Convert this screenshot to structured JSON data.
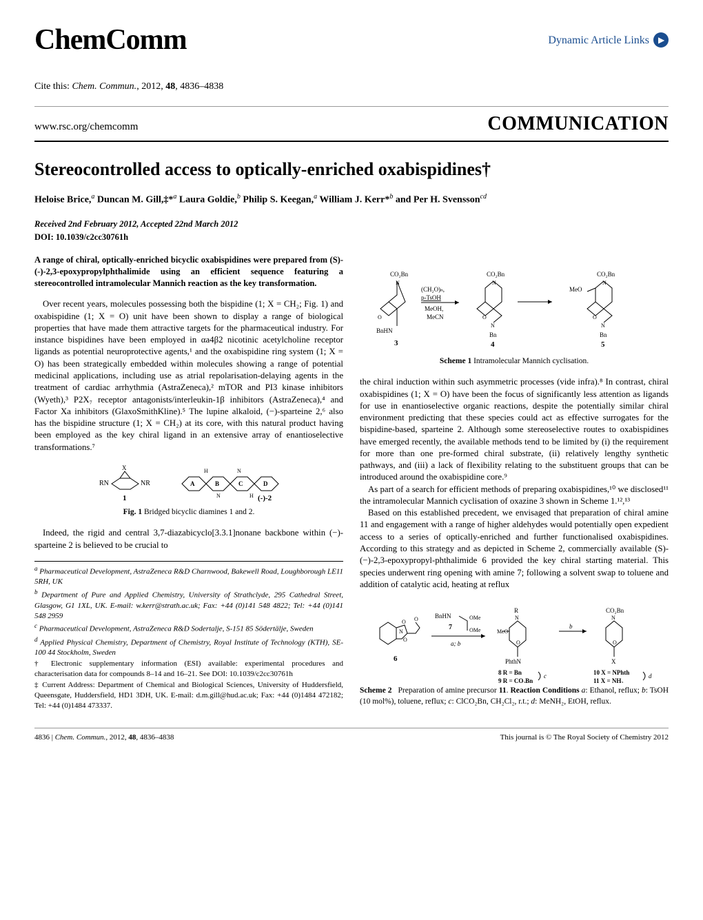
{
  "header": {
    "journal_name": "ChemComm",
    "article_links_text": "Dynamic Article Links"
  },
  "citation": {
    "prefix": "Cite this: ",
    "journal_italic": "Chem. Commun.",
    "year": ", 2012, ",
    "volume": "48",
    "pages": ", 4836–4838"
  },
  "url_row": {
    "journal_url": "www.rsc.org/chemcomm",
    "article_type": "COMMUNICATION"
  },
  "title": "Stereocontrolled access to optically-enriched oxabispidines†",
  "authors_html": "Heloise Brice,<span class='sup'>a</span> Duncan M. Gill,‡*<span class='sup'>a</span> Laura Goldie,<span class='sup'>b</span> Philip S. Keegan,<span class='sup'>a</span> William J. Kerr*<span class='sup'>b</span> and Per H. Svensson<span class='sup'>cd</span>",
  "dates": "Received 2nd February 2012, Accepted 22nd March 2012",
  "doi": "DOI: 10.1039/c2cc30761h",
  "abstract": "A range of chiral, optically-enriched bicyclic oxabispidines were prepared from (S)-(-)-2,3-epoxypropylphthalimide using an efficient sequence featuring a stereocontrolled intramolecular Mannich reaction as the key transformation.",
  "col1": {
    "p1": "Over recent years, molecules possessing both the bispidine (1; X = CH₂; Fig. 1) and oxabispidine (1; X = O) unit have been shown to display a range of biological properties that have made them attractive targets for the pharmaceutical industry. For instance bispidines have been employed in αa4β2 nicotinic acetylcholine receptor ligands as potential neuroprotective agents,¹ and the oxabispidine ring system (1; X = O) has been strategically embedded within molecules showing a range of potential medicinal applications, including use as atrial repolarisation-delaying agents in the treatment of cardiac arrhythmia (AstraZeneca),² mTOR and PI3 kinase inhibitors (Wyeth),³ P2X₇ receptor antagonists/interleukin-1β inhibitors (AstraZeneca),⁴ and Factor Xa inhibitors (GlaxoSmithKline).⁵ The lupine alkaloid, (−)-sparteine 2,⁶ also has the bispidine structure (1; X = CH₂) at its core, with this natural product having been employed as the key chiral ligand in an extensive array of enantioselective transformations.⁷",
    "fig1_caption_bold": "Fig. 1",
    "fig1_caption_rest": "   Bridged bicyclic diamines 1 and 2.",
    "p2": "Indeed, the rigid and central 3,7-diazabicyclo[3.3.1]nonane backbone within (−)-sparteine 2 is believed to be crucial to"
  },
  "affiliations": {
    "a": "Pharmaceutical Development, AstraZeneca R&D Charnwood, Bakewell Road, Loughborough LE11 5RH, UK",
    "b": "Department of Pure and Applied Chemistry, University of Strathclyde, 295 Cathedral Street, Glasgow, G1 1XL, UK. E-mail: w.kerr@strath.ac.uk; Fax: +44 (0)141 548 4822; Tel: +44 (0)141 548 2959",
    "c": "Pharmaceutical Development, AstraZeneca R&D Sodertalje, S-151 85 Södertälje, Sweden",
    "d": "Applied Physical Chemistry, Department of Chemistry, Royal Institute of Technology (KTH), SE-100 44 Stockholm, Sweden",
    "esi": "† Electronic supplementary information (ESI) available: experimental procedures and characterisation data for compounds 8–14 and 16–21. See DOI: 10.1039/c2cc30761h",
    "current": "‡ Current Address: Department of Chemical and Biological Sciences, University of Huddersfield, Queensgate, Huddersfield, HD1 3DH, UK. E-mail: d.m.gill@hud.ac.uk; Fax: +44 (0)1484 472182; Tel: +44 (0)1484 473337."
  },
  "col2": {
    "scheme1_caption_bold": "Scheme 1",
    "scheme1_caption_rest": "   Intramolecular Mannich cyclisation.",
    "p1": "the chiral induction within such asymmetric processes (vide infra).⁸ In contrast, chiral oxabispidines (1; X = O) have been the focus of significantly less attention as ligands for use in enantioselective organic reactions, despite the potentially similar chiral environment predicting that these species could act as effective surrogates for the bispidine-based, sparteine 2. Although some stereoselective routes to oxabispidines have emerged recently, the available methods tend to be limited by (i) the requirement for more than one pre-formed chiral substrate, (ii) relatively lengthy synthetic pathways, and (iii) a lack of flexibility relating to the substituent groups that can be introduced around the oxabispidine core.⁹",
    "p2": "As part of a search for efficient methods of preparing oxabispidines,¹⁰ we disclosed¹¹ the intramolecular Mannich cyclisation of oxazine 3 shown in Scheme 1.¹²,¹³",
    "p3": "Based on this established precedent, we envisaged that preparation of chiral amine 11 and engagement with a range of higher aldehydes would potentially open expedient access to a series of optically-enriched and further functionalised oxabispidines. According to this strategy and as depicted in Scheme 2, commercially available (S)-(−)-2,3-epoxypropyl-phthalimide 6 provided the key chiral starting material. This species underwent ring opening with amine 7; following a solvent swap to toluene and addition of catalytic acid, heating at reflux",
    "scheme2_caption": "Scheme 2   Preparation of amine precursor 11. Reaction Conditions a: Ethanol, reflux; b: TsOH (10 mol%), toluene, reflux; c: ClCO₂Bn, CH₂Cl₂, r.t.; d: MeNH₂, EtOH, reflux."
  },
  "footer": {
    "left": "4836 | Chem. Commun., 2012, 48, 4836–4838",
    "right": "This journal is © The Royal Society of Chemistry 2012"
  },
  "scheme1_structures": {
    "compound_3": {
      "label": "3",
      "groups": [
        "CO₂Bn",
        "BnHN",
        "O"
      ]
    },
    "reagents_34": [
      "(CH₂O)ₙ",
      "p-TsOH",
      "MeOH,",
      "MeCN"
    ],
    "compound_4": {
      "label": "4",
      "groups": [
        "CO₂Bn",
        "N",
        "O",
        "Bn"
      ]
    },
    "compound_5": {
      "label": "5",
      "groups": [
        "CO₂Bn",
        "MeO",
        "N",
        "O",
        "Bn"
      ]
    }
  },
  "fig1_structures": {
    "compound_1": {
      "label": "1",
      "groups": [
        "RN",
        "X",
        "NR"
      ]
    },
    "compound_2": {
      "label": "(-)-2",
      "rings": [
        "A",
        "B",
        "C",
        "D"
      ],
      "groups": [
        "H",
        "N",
        "N",
        "H"
      ]
    }
  },
  "scheme2_structures": {
    "compound_6": {
      "label": "6",
      "groups": [
        "O",
        "N",
        "O",
        "O"
      ]
    },
    "amine_7": {
      "label": "7",
      "groups": [
        "BnHN",
        "OMe",
        "OMe"
      ]
    },
    "steps_67": "a; b",
    "compound_89": {
      "groups": [
        "R",
        "N",
        "MeO",
        "O",
        "PhthN"
      ],
      "variants": [
        "8 R = Bn",
        "9 R = CO₂Bn"
      ],
      "step": "c"
    },
    "compound_1011": {
      "groups": [
        "CO₂Bn",
        "N",
        "O",
        "X"
      ],
      "variants": [
        "10 X = NPhth",
        "11 X = NH₂"
      ],
      "steps": [
        "b",
        "d"
      ]
    }
  }
}
